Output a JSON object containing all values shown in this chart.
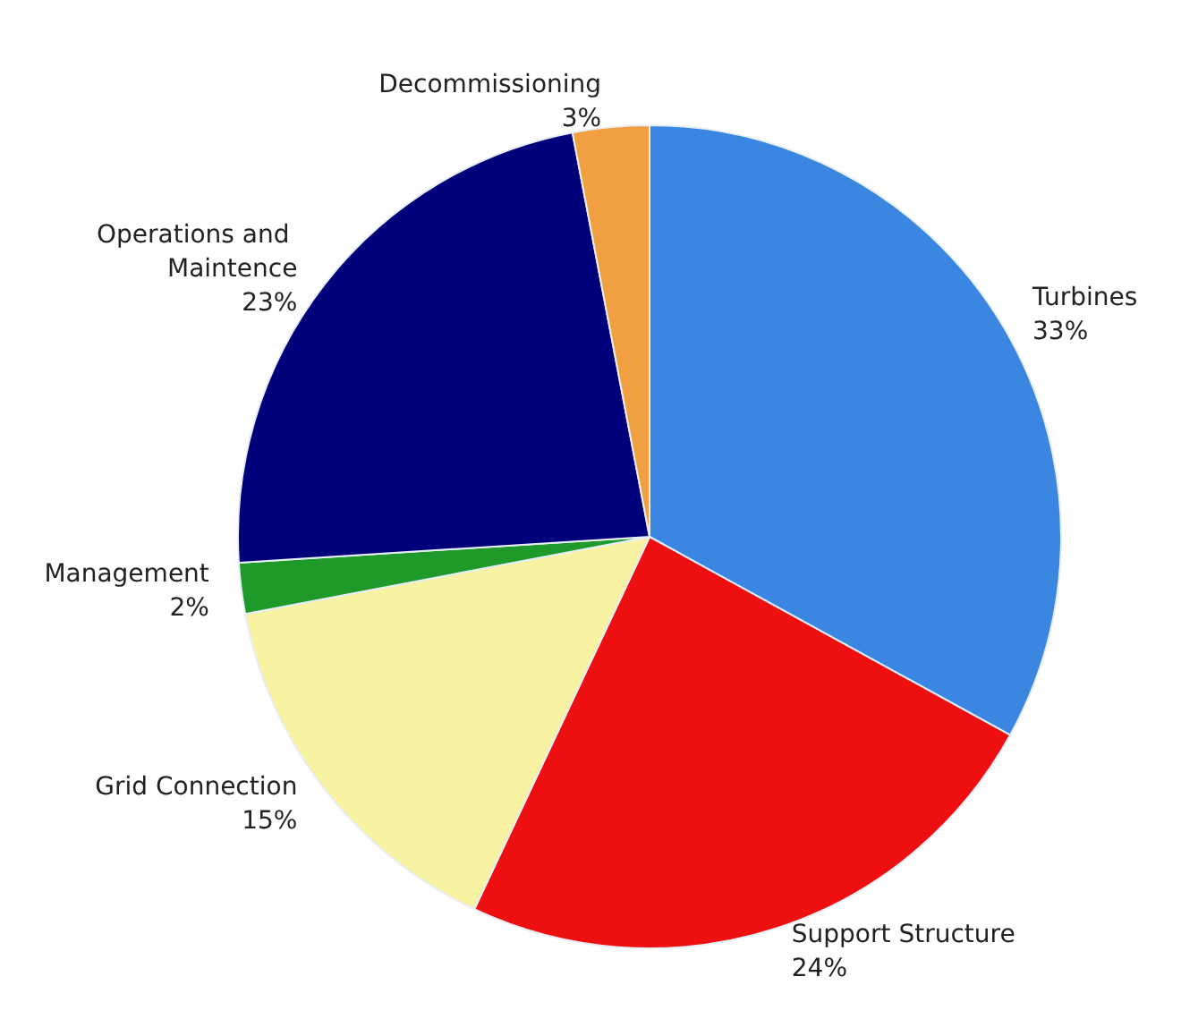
{
  "chart_data": {
    "type": "pie",
    "categories": [
      "Turbines",
      "Support Structure",
      "Grid Connection",
      "Management",
      "Operations and Maintence",
      "Decommissioning"
    ],
    "values": [
      33,
      24,
      15,
      2,
      23,
      3
    ],
    "value_labels": [
      "33%",
      "24%",
      "15%",
      "2%",
      "23%",
      "3%"
    ],
    "colors": [
      "#3a86e0",
      "#ee1010",
      "#f7f3a2",
      "#1f9a2a",
      "#00007a",
      "#f0a040"
    ],
    "legend": false
  }
}
